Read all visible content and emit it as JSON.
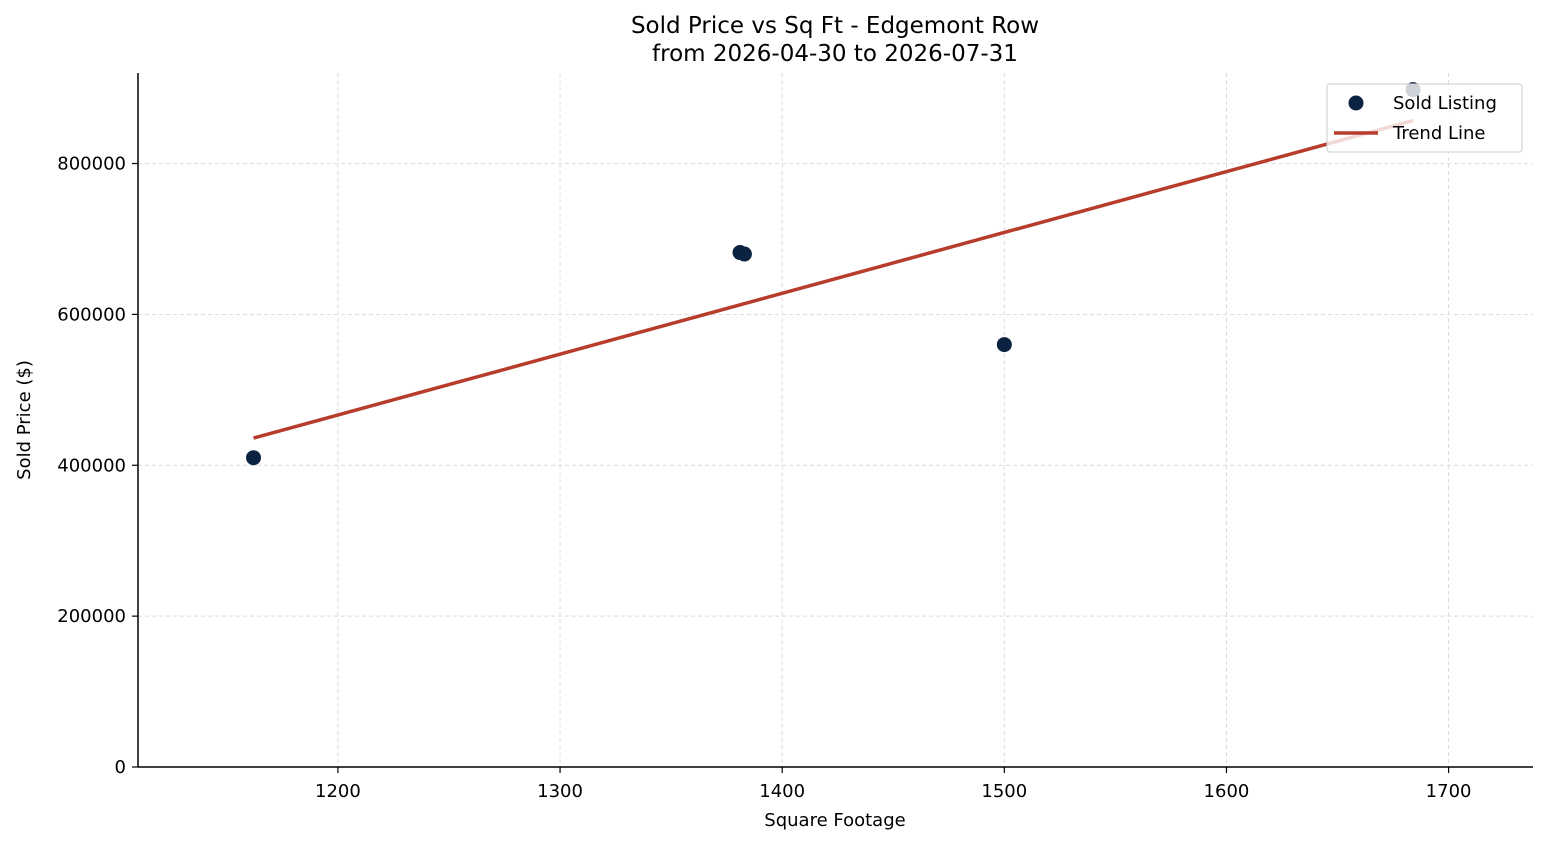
{
  "chart_data": {
    "type": "scatter",
    "title": "Sold Price vs Sq Ft - Edgemont Row",
    "subtitle": "from 2026-04-30 to 2026-07-31",
    "xlabel": "Square Footage",
    "ylabel": "Sold Price ($)",
    "xlim": [
      1110,
      1738
    ],
    "ylim": [
      0,
      920000
    ],
    "xticks": [
      1200,
      1300,
      1400,
      1500,
      1600,
      1700
    ],
    "yticks": [
      0,
      200000,
      400000,
      600000,
      800000
    ],
    "xtick_labels": [
      "1200",
      "1300",
      "1400",
      "1500",
      "1600",
      "1700"
    ],
    "ytick_labels": [
      "0",
      "200000",
      "400000",
      "600000",
      "800000"
    ],
    "grid": true,
    "legend_position": "top-right",
    "series": [
      {
        "name": "Sold Listing",
        "kind": "scatter",
        "color": "#0b2340",
        "x": [
          1162,
          1381,
          1383,
          1500,
          1684
        ],
        "y": [
          410000,
          682000,
          680000,
          560000,
          898000
        ]
      },
      {
        "name": "Trend Line",
        "kind": "line",
        "color": "#b83c2c",
        "x": [
          1162,
          1684
        ],
        "y": [
          436000,
          857000
        ]
      }
    ]
  }
}
